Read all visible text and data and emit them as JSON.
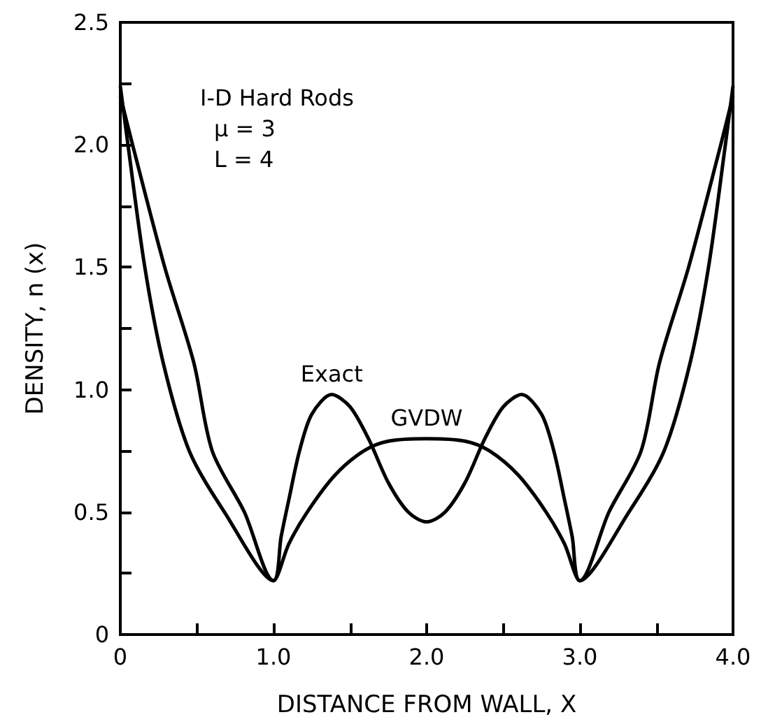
{
  "chart_data": {
    "type": "line",
    "xlabel": "DISTANCE FROM WALL, X",
    "ylabel": "DENSITY, n (x)",
    "annotations": [
      "I-D Hard Rods",
      "μ = 3",
      "L = 4"
    ],
    "series": [
      {
        "name": "Exact",
        "color": "#000000",
        "x": [
          0,
          0.05,
          0.16,
          0.28,
          0.45,
          0.68,
          1.0,
          1.05,
          1.1,
          1.17,
          1.25,
          1.38,
          1.5,
          1.62,
          1.75,
          1.88,
          2.0,
          2.12,
          2.25,
          2.38,
          2.5,
          2.62,
          2.75,
          2.83,
          2.9,
          2.95,
          3.0,
          3.32,
          3.55,
          3.72,
          3.84,
          3.95,
          4.0
        ],
        "values": [
          2.24,
          2.0,
          1.5,
          1.11,
          0.75,
          0.5,
          0.22,
          0.4,
          0.55,
          0.75,
          0.9,
          0.98,
          0.93,
          0.8,
          0.62,
          0.5,
          0.46,
          0.5,
          0.62,
          0.8,
          0.93,
          0.98,
          0.9,
          0.75,
          0.55,
          0.4,
          0.22,
          0.5,
          0.75,
          1.11,
          1.5,
          2.0,
          2.24
        ]
      },
      {
        "name": "GVDW",
        "color": "#000000",
        "x": [
          0,
          0.08,
          0.29,
          0.48,
          0.6,
          0.81,
          1.0,
          1.1,
          1.22,
          1.4,
          1.59,
          1.75,
          2.0,
          2.25,
          2.41,
          2.6,
          2.78,
          2.9,
          3.0,
          3.19,
          3.4,
          3.52,
          3.71,
          3.92,
          4.0
        ],
        "values": [
          2.2,
          2.0,
          1.5,
          1.11,
          0.75,
          0.5,
          0.22,
          0.37,
          0.5,
          0.65,
          0.75,
          0.79,
          0.8,
          0.79,
          0.75,
          0.65,
          0.5,
          0.37,
          0.22,
          0.5,
          0.75,
          1.11,
          1.5,
          2.0,
          2.2
        ]
      }
    ],
    "xlim": [
      0,
      4
    ],
    "ylim": [
      0,
      2.5
    ],
    "xticks": [
      0,
      {
        "value": 0.5,
        "label": null
      },
      {
        "value": 1,
        "label": "1.0"
      },
      {
        "value": 1.5,
        "label": null
      },
      {
        "value": 2,
        "label": "2.0"
      },
      {
        "value": 2.5,
        "label": null
      },
      {
        "value": 3,
        "label": "3.0"
      },
      {
        "value": 3.5,
        "label": null
      },
      {
        "value": 4,
        "label": "4.0"
      }
    ],
    "yticks": [
      0,
      {
        "value": 0.25,
        "label": null
      },
      0.5,
      {
        "value": 0.75,
        "label": null
      },
      {
        "value": 1,
        "label": "1.0"
      },
      {
        "value": 1.25,
        "label": null
      },
      1.5,
      {
        "value": 1.75,
        "label": null
      },
      {
        "value": 2,
        "label": "2.0"
      },
      {
        "value": 2.25,
        "label": null
      },
      2.5
    ],
    "grid": false,
    "legend": false,
    "marker": "none",
    "line_style": "solid"
  }
}
